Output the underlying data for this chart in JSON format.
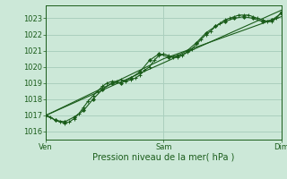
{
  "background_color": "#cce8d8",
  "plot_bg_color": "#cce8d8",
  "grid_color": "#aacfbe",
  "line_color": "#1a5c1a",
  "ylim": [
    1015.5,
    1023.8
  ],
  "yticks": [
    1016,
    1017,
    1018,
    1019,
    1020,
    1021,
    1022,
    1023
  ],
  "xlabel": "Pression niveau de la mer( hPa )",
  "xtick_labels": [
    "Ven",
    "Sam",
    "Dim"
  ],
  "xtick_positions": [
    0.0,
    0.5,
    1.0
  ],
  "axis_fontsize": 7,
  "tick_fontsize": 6,
  "series1_x": [
    0.0,
    0.02,
    0.04,
    0.06,
    0.08,
    0.1,
    0.12,
    0.14,
    0.16,
    0.18,
    0.2,
    0.22,
    0.24,
    0.26,
    0.28,
    0.3,
    0.32,
    0.34,
    0.36,
    0.38,
    0.4,
    0.42,
    0.44,
    0.46,
    0.48,
    0.5,
    0.52,
    0.54,
    0.56,
    0.58,
    0.6,
    0.62,
    0.64,
    0.66,
    0.68,
    0.7,
    0.72,
    0.74,
    0.76,
    0.78,
    0.8,
    0.82,
    0.84,
    0.86,
    0.88,
    0.9,
    0.92,
    0.94,
    0.96,
    0.98,
    1.0
  ],
  "series1_y": [
    1017.0,
    1016.9,
    1016.7,
    1016.6,
    1016.5,
    1016.6,
    1016.8,
    1017.1,
    1017.5,
    1017.9,
    1018.2,
    1018.5,
    1018.8,
    1019.0,
    1019.1,
    1019.1,
    1019.2,
    1019.1,
    1019.2,
    1019.3,
    1019.5,
    1019.8,
    1020.0,
    1020.4,
    1020.7,
    1020.8,
    1020.7,
    1020.6,
    1020.6,
    1020.7,
    1020.9,
    1021.1,
    1021.4,
    1021.7,
    1022.0,
    1022.2,
    1022.5,
    1022.7,
    1022.9,
    1023.0,
    1023.1,
    1023.2,
    1023.2,
    1023.2,
    1023.1,
    1023.0,
    1022.9,
    1022.8,
    1022.8,
    1023.0,
    1023.4
  ],
  "series2_x": [
    0.0,
    0.04,
    0.08,
    0.12,
    0.16,
    0.2,
    0.24,
    0.28,
    0.32,
    0.36,
    0.4,
    0.44,
    0.48,
    0.52,
    0.56,
    0.6,
    0.64,
    0.68,
    0.72,
    0.76,
    0.8,
    0.84,
    0.88,
    0.92,
    0.96,
    1.0
  ],
  "series2_y": [
    1017.0,
    1016.7,
    1016.6,
    1016.9,
    1017.3,
    1018.0,
    1018.6,
    1019.0,
    1019.0,
    1019.3,
    1019.7,
    1020.4,
    1020.8,
    1020.6,
    1020.7,
    1021.0,
    1021.5,
    1022.1,
    1022.5,
    1022.8,
    1023.0,
    1023.1,
    1023.0,
    1022.8,
    1022.9,
    1023.3
  ],
  "series3_x": [
    0.0,
    1.0
  ],
  "series3_y": [
    1017.0,
    1023.5
  ],
  "series4_x": [
    0.0,
    0.5,
    1.0
  ],
  "series4_y": [
    1017.0,
    1020.5,
    1023.1
  ]
}
